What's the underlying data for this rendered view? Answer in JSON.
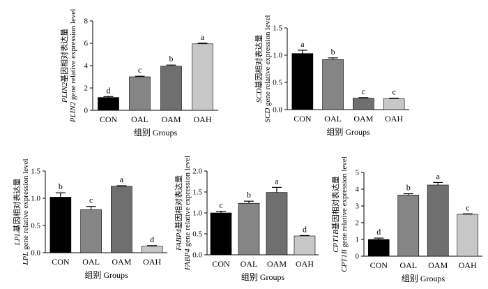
{
  "chart_data": [
    {
      "type": "bar",
      "categories": [
        "CON",
        "OAL",
        "OAM",
        "OAH"
      ],
      "values": [
        1.15,
        3.0,
        3.95,
        5.95
      ],
      "errors": [
        0.08,
        0.05,
        0.1,
        0.06
      ],
      "letters": [
        "d",
        "c",
        "b",
        "a"
      ],
      "colors": [
        "#000000",
        "#858585",
        "#6f6f6f",
        "#c7c7c7"
      ],
      "ylim": [
        0,
        8
      ],
      "yticks": [
        0,
        2,
        4,
        6,
        8
      ],
      "ylabel_line1": "PLIN2基因相对表达量",
      "ylabel_line2": "PLIN2 gene relative expression level",
      "xlabel": "组别 Groups"
    },
    {
      "type": "bar",
      "categories": [
        "CON",
        "OAL",
        "OAM",
        "OAH"
      ],
      "values": [
        1.03,
        0.92,
        0.21,
        0.2
      ],
      "errors": [
        0.06,
        0.03,
        0.01,
        0.01
      ],
      "letters": [
        "a",
        "b",
        "c",
        "c"
      ],
      "colors": [
        "#000000",
        "#858585",
        "#6f6f6f",
        "#c7c7c7"
      ],
      "ylim": [
        0,
        1.5
      ],
      "yticks": [
        0,
        0.5,
        1.0,
        1.5
      ],
      "ylabel_line1": "SCD基因相对表达量",
      "ylabel_line2": "SCD gene relative expression level",
      "xlabel": "组别 Groups"
    },
    {
      "type": "bar",
      "categories": [
        "CON",
        "OAL",
        "OAM",
        "OAH"
      ],
      "values": [
        1.02,
        0.79,
        1.22,
        0.12
      ],
      "errors": [
        0.08,
        0.06,
        0.01,
        0.01
      ],
      "letters": [
        "b",
        "c",
        "a",
        "d"
      ],
      "colors": [
        "#000000",
        "#858585",
        "#6f6f6f",
        "#c7c7c7"
      ],
      "ylim": [
        0,
        1.5
      ],
      "yticks": [
        0,
        0.5,
        1.0,
        1.5
      ],
      "ylabel_line1": "LPL基因相对表达量",
      "ylabel_line2": "LPL gene relative expression level",
      "xlabel": "组别 Groups"
    },
    {
      "type": "bar",
      "categories": [
        "CON",
        "OAL",
        "OAM",
        "OAH"
      ],
      "values": [
        1.0,
        1.23,
        1.49,
        0.45
      ],
      "errors": [
        0.04,
        0.05,
        0.12,
        0.01
      ],
      "letters": [
        "c",
        "b",
        "a",
        "d"
      ],
      "colors": [
        "#000000",
        "#858585",
        "#6f6f6f",
        "#c7c7c7"
      ],
      "ylim": [
        0,
        2.0
      ],
      "yticks": [
        0,
        0.5,
        1.0,
        1.5,
        2.0
      ],
      "ylabel_line1": "FABP4基因相对表达量",
      "ylabel_line2": "FABP4 gene relative expression level",
      "xlabel": "组别 Groups"
    },
    {
      "type": "bar",
      "categories": [
        "CON",
        "OAL",
        "OAM",
        "OAH"
      ],
      "values": [
        1.0,
        3.65,
        4.25,
        2.5
      ],
      "errors": [
        0.08,
        0.08,
        0.15,
        0.03
      ],
      "letters": [
        "d",
        "b",
        "a",
        "c"
      ],
      "colors": [
        "#000000",
        "#858585",
        "#6f6f6f",
        "#c7c7c7"
      ],
      "ylim": [
        0,
        5
      ],
      "yticks": [
        0,
        1,
        2,
        3,
        4,
        5
      ],
      "ylabel_line1": "CPT1B基因相对表达量",
      "ylabel_line2": "CPT1B gene relative expression level",
      "xlabel": "组别 Groups"
    }
  ]
}
